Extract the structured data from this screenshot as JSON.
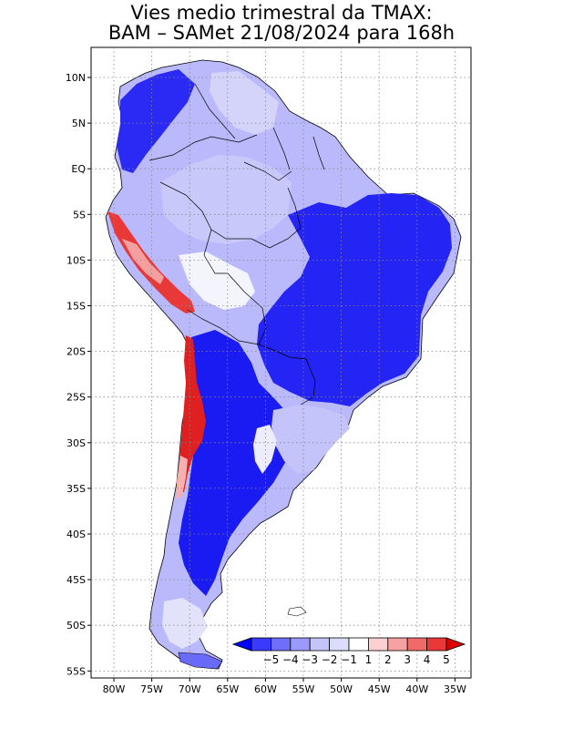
{
  "title": {
    "line1": "Vies medio trimestral da TMAX:",
    "line2": "BAM – SAMet 21/08/2024  para 168h"
  },
  "axes": {
    "lon_labels": [
      "80W",
      "75W",
      "70W",
      "65W",
      "60W",
      "55W",
      "50W",
      "45W",
      "40W",
      "35W"
    ],
    "lat_labels": [
      "10N",
      "5N",
      "EQ",
      "5S",
      "10S",
      "15S",
      "20S",
      "25S",
      "30S",
      "35S",
      "40S",
      "45S",
      "50S",
      "55S"
    ],
    "grid": true
  },
  "colorbar": {
    "labels": [
      "−5",
      "−4",
      "−3",
      "−2",
      "−1",
      "1",
      "2",
      "3",
      "4",
      "5"
    ],
    "colors": [
      "#0000ff",
      "#3a3afd",
      "#6e6efb",
      "#9a9afc",
      "#c4c4fb",
      "#dcdcfb",
      "#ffffff",
      "#fbd0d0",
      "#f7a2a2",
      "#f06a6a",
      "#e83838",
      "#dd0000"
    ]
  },
  "colors": {
    "land_default": "#9a9afc",
    "strong_negative": "#1010f0",
    "neutral": "#ffffff",
    "positive": "#e83030"
  }
}
